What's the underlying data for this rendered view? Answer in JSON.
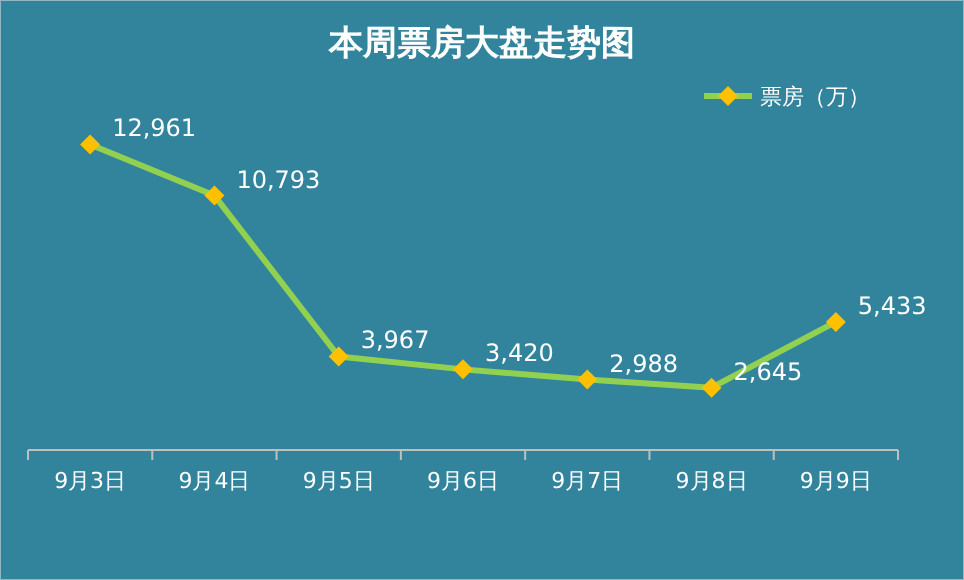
{
  "chart_data": {
    "type": "line",
    "title": "本周票房大盘走势图",
    "categories": [
      "9月3日",
      "9月4日",
      "9月5日",
      "9月6日",
      "9月7日",
      "9月8日",
      "9月9日"
    ],
    "series": [
      {
        "name": "票房（万）",
        "color": "#92d050",
        "values": [
          12961,
          10793,
          3967,
          3420,
          2988,
          2645,
          5433
        ],
        "value_labels": [
          "12,961",
          "10,793",
          "3,967",
          "3,420",
          "2,988",
          "2,645",
          "5,433"
        ]
      }
    ],
    "marker": "diamond",
    "legend": "top right",
    "tick_labels": "x"
  }
}
